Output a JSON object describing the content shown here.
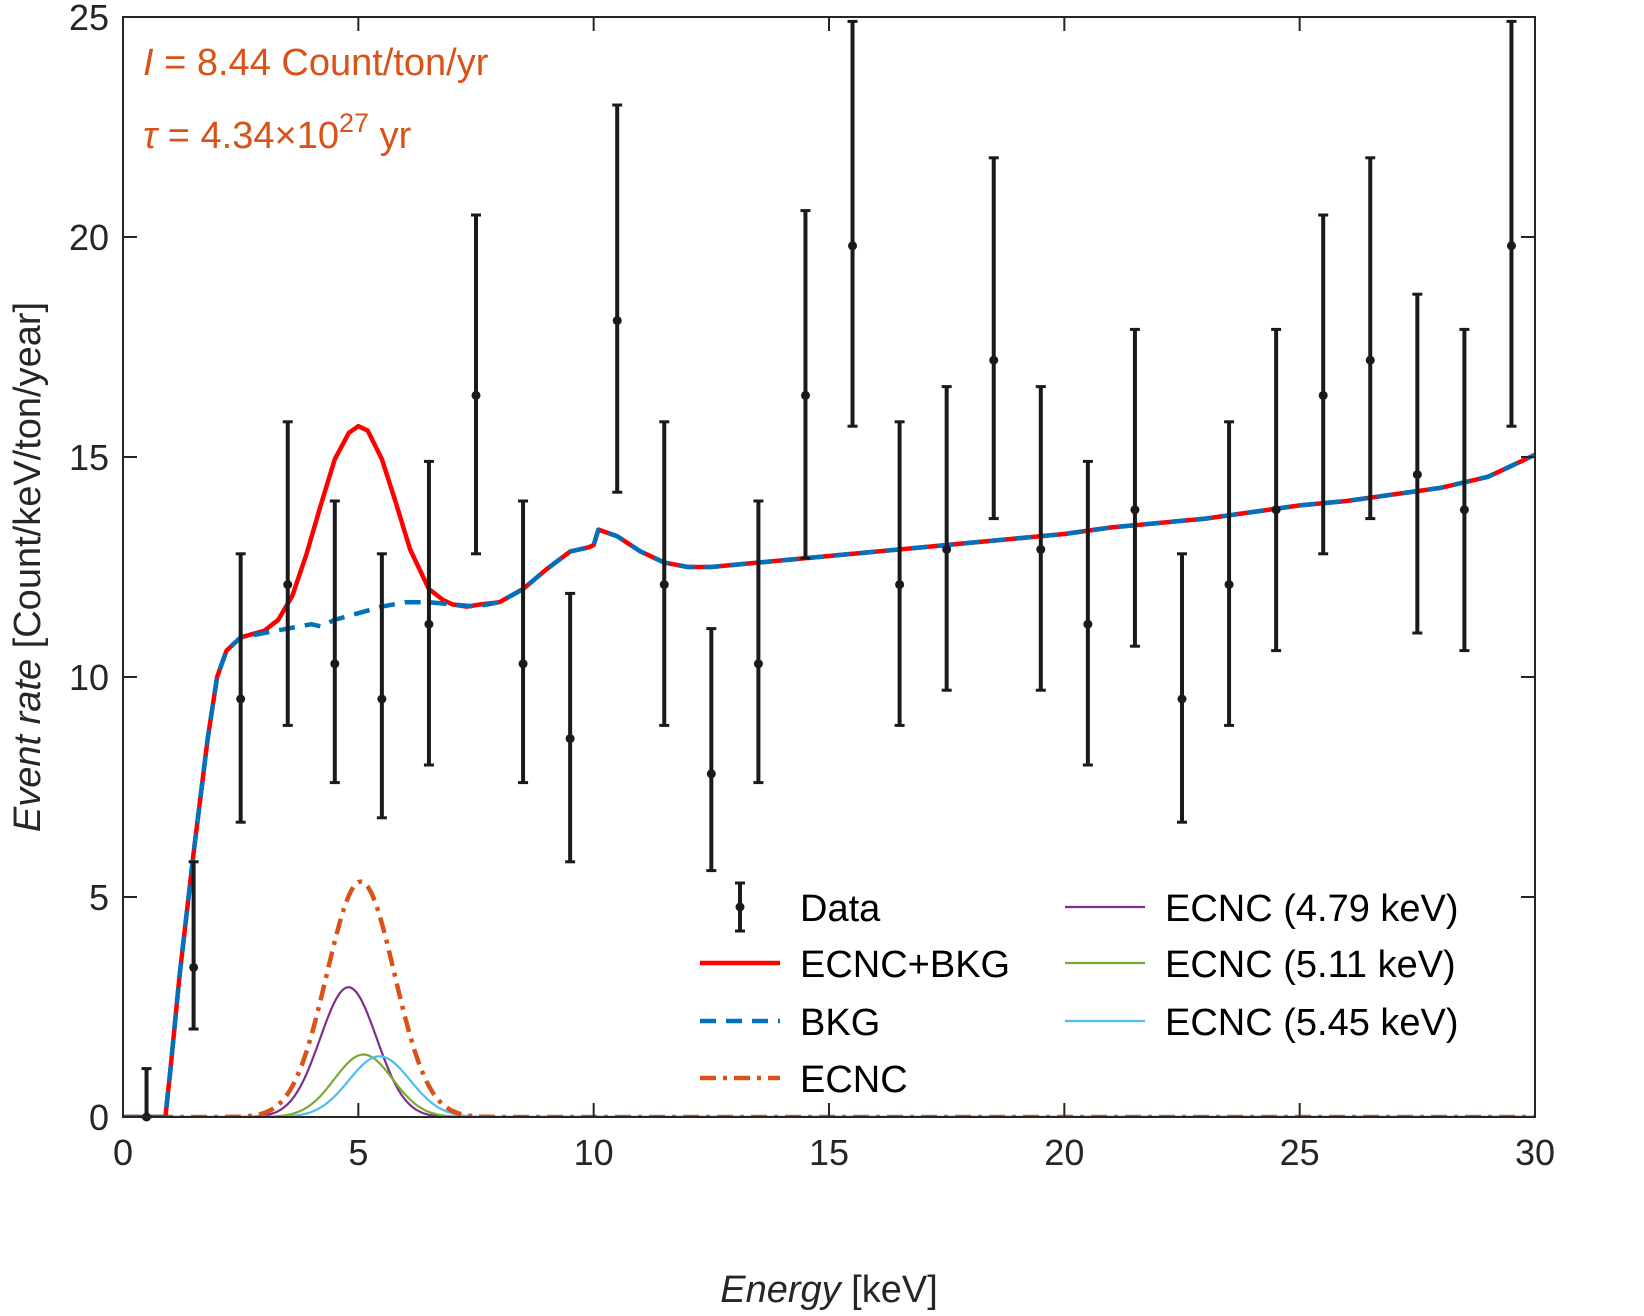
{
  "chart_data": {
    "type": "line",
    "xlabel": {
      "italic": "Energy",
      "rest": " [keV]"
    },
    "ylabel": {
      "italic": "Event rate",
      "rest": " [Count/keV/ton/year]"
    },
    "xlim": [
      0,
      30
    ],
    "ylim": [
      0,
      25
    ],
    "xticks": [
      0,
      5,
      10,
      15,
      20,
      25,
      30
    ],
    "yticks": [
      0,
      5,
      10,
      15,
      20,
      25
    ],
    "grid": false,
    "legend_position": "bottom-right",
    "annotations": {
      "line1": {
        "symbol": "I",
        "rest": " = 8.44 Count/ton/yr"
      },
      "line2": {
        "symbol": "τ",
        "rest": " = 4.34",
        "times": "×",
        "base": "10",
        "exponent": "27",
        "unit": " yr"
      },
      "color": "#d95319"
    },
    "legend": [
      {
        "name": "Data",
        "kind": "errorbar",
        "color": "#1a1a1a"
      },
      {
        "name": "ECNC+BKG",
        "kind": "solid",
        "color": "#ff0000"
      },
      {
        "name": "BKG",
        "kind": "dashed",
        "color": "#0072bd"
      },
      {
        "name": "ECNC",
        "kind": "dashdot",
        "color": "#d95319"
      },
      {
        "name": "ECNC (4.79 keV)",
        "kind": "thin",
        "color": "#7e2f8e"
      },
      {
        "name": "ECNC (5.11 keV)",
        "kind": "thin",
        "color": "#77ac30"
      },
      {
        "name": "ECNC (5.45 keV)",
        "kind": "thin",
        "color": "#4dbeee"
      }
    ],
    "data_points": {
      "x": [
        0.5,
        1.5,
        2.5,
        3.5,
        4.5,
        5.5,
        6.5,
        7.5,
        8.5,
        9.5,
        10.5,
        11.5,
        12.5,
        13.5,
        14.5,
        15.5,
        16.5,
        17.5,
        18.5,
        19.5,
        20.5,
        21.5,
        22.5,
        23.5,
        24.5,
        25.5,
        26.5,
        27.5,
        28.5,
        29.5
      ],
      "y": [
        0.0,
        3.4,
        9.5,
        12.1,
        10.3,
        9.5,
        11.2,
        16.4,
        10.3,
        8.6,
        18.1,
        12.1,
        7.8,
        10.3,
        16.4,
        19.8,
        12.1,
        12.9,
        17.2,
        12.9,
        11.2,
        13.8,
        9.5,
        12.1,
        13.8,
        16.4,
        17.2,
        14.6,
        13.8,
        19.8
      ],
      "lo": [
        0.0,
        2.0,
        6.7,
        8.9,
        7.6,
        6.8,
        8.0,
        12.8,
        7.6,
        5.8,
        14.2,
        8.9,
        5.6,
        7.6,
        12.7,
        15.7,
        8.9,
        9.7,
        13.6,
        9.7,
        8.0,
        10.7,
        6.7,
        8.9,
        10.6,
        12.8,
        13.6,
        11.0,
        10.6,
        15.7
      ],
      "hi": [
        1.1,
        5.8,
        12.8,
        15.8,
        14.0,
        12.8,
        14.9,
        20.5,
        14.0,
        11.9,
        23.0,
        15.8,
        11.1,
        14.0,
        20.6,
        24.9,
        15.8,
        16.6,
        21.8,
        16.6,
        14.9,
        17.9,
        12.8,
        15.8,
        17.9,
        20.5,
        21.8,
        18.7,
        17.9,
        24.9
      ]
    },
    "series": [
      {
        "name": "BKG",
        "x": [
          0,
          0.9,
          1.0,
          1.2,
          1.5,
          1.8,
          2.0,
          2.2,
          2.5,
          3.0,
          3.5,
          4.0,
          4.2,
          4.5,
          5.0,
          5.5,
          6.0,
          6.5,
          7.0,
          7.5,
          8.0,
          8.5,
          9.0,
          9.5,
          9.9,
          10.0,
          10.1,
          10.5,
          11.0,
          11.5,
          12.0,
          12.5,
          13.0,
          14.0,
          15.0,
          16.0,
          17.0,
          18.0,
          19.0,
          20.0,
          21.0,
          22.0,
          23.0,
          24.0,
          25.0,
          26.0,
          27.0,
          28.0,
          29.0,
          29.5,
          30.0
        ],
        "y": [
          0,
          0,
          1.0,
          3.2,
          6.0,
          8.6,
          10.0,
          10.6,
          10.9,
          11.0,
          11.1,
          11.2,
          11.15,
          11.3,
          11.45,
          11.6,
          11.7,
          11.7,
          11.65,
          11.6,
          11.7,
          12.0,
          12.45,
          12.85,
          12.95,
          13.0,
          13.35,
          13.2,
          12.85,
          12.6,
          12.5,
          12.5,
          12.55,
          12.65,
          12.75,
          12.85,
          12.95,
          13.05,
          13.15,
          13.25,
          13.4,
          13.5,
          13.6,
          13.75,
          13.9,
          14.0,
          14.15,
          14.3,
          14.55,
          14.8,
          15.05
        ]
      },
      {
        "name": "ECNC+BKG",
        "x": [
          0,
          0.9,
          1.0,
          1.2,
          1.5,
          1.8,
          2.0,
          2.2,
          2.5,
          3.0,
          3.3,
          3.6,
          3.9,
          4.2,
          4.5,
          4.8,
          5.0,
          5.2,
          5.5,
          5.8,
          6.1,
          6.5,
          6.8,
          7.0,
          7.3,
          7.6,
          8.0,
          8.5,
          9.0,
          9.5,
          9.9,
          10.0,
          10.1,
          10.5,
          11.0,
          11.5,
          12.0,
          12.5,
          13.0,
          14.0,
          15.0,
          16.0,
          17.0,
          18.0,
          19.0,
          20.0,
          21.0,
          22.0,
          23.0,
          24.0,
          25.0,
          26.0,
          27.0,
          28.0,
          29.0,
          29.5,
          30.0
        ],
        "y": [
          0,
          0,
          1.0,
          3.2,
          6.0,
          8.6,
          10.0,
          10.6,
          10.9,
          11.05,
          11.3,
          11.85,
          12.8,
          13.9,
          14.95,
          15.55,
          15.7,
          15.6,
          14.95,
          13.95,
          12.9,
          12.0,
          11.75,
          11.65,
          11.6,
          11.65,
          11.7,
          12.0,
          12.45,
          12.85,
          12.95,
          13.0,
          13.35,
          13.2,
          12.85,
          12.6,
          12.5,
          12.5,
          12.55,
          12.65,
          12.75,
          12.85,
          12.95,
          13.05,
          13.15,
          13.25,
          13.4,
          13.5,
          13.6,
          13.75,
          13.9,
          14.0,
          14.15,
          14.3,
          14.55,
          14.8,
          15.05
        ]
      },
      {
        "name": "ECNC",
        "gaussian": {
          "mu": 5.05,
          "sigma": 0.72,
          "amp": 5.35
        }
      },
      {
        "name": "ECNC (4.79 keV)",
        "gaussian": {
          "mu": 4.79,
          "sigma": 0.6,
          "amp": 2.95
        }
      },
      {
        "name": "ECNC (5.11 keV)",
        "gaussian": {
          "mu": 5.11,
          "sigma": 0.62,
          "amp": 1.42
        }
      },
      {
        "name": "ECNC (5.45 keV)",
        "gaussian": {
          "mu": 5.45,
          "sigma": 0.65,
          "amp": 1.38
        }
      }
    ]
  }
}
